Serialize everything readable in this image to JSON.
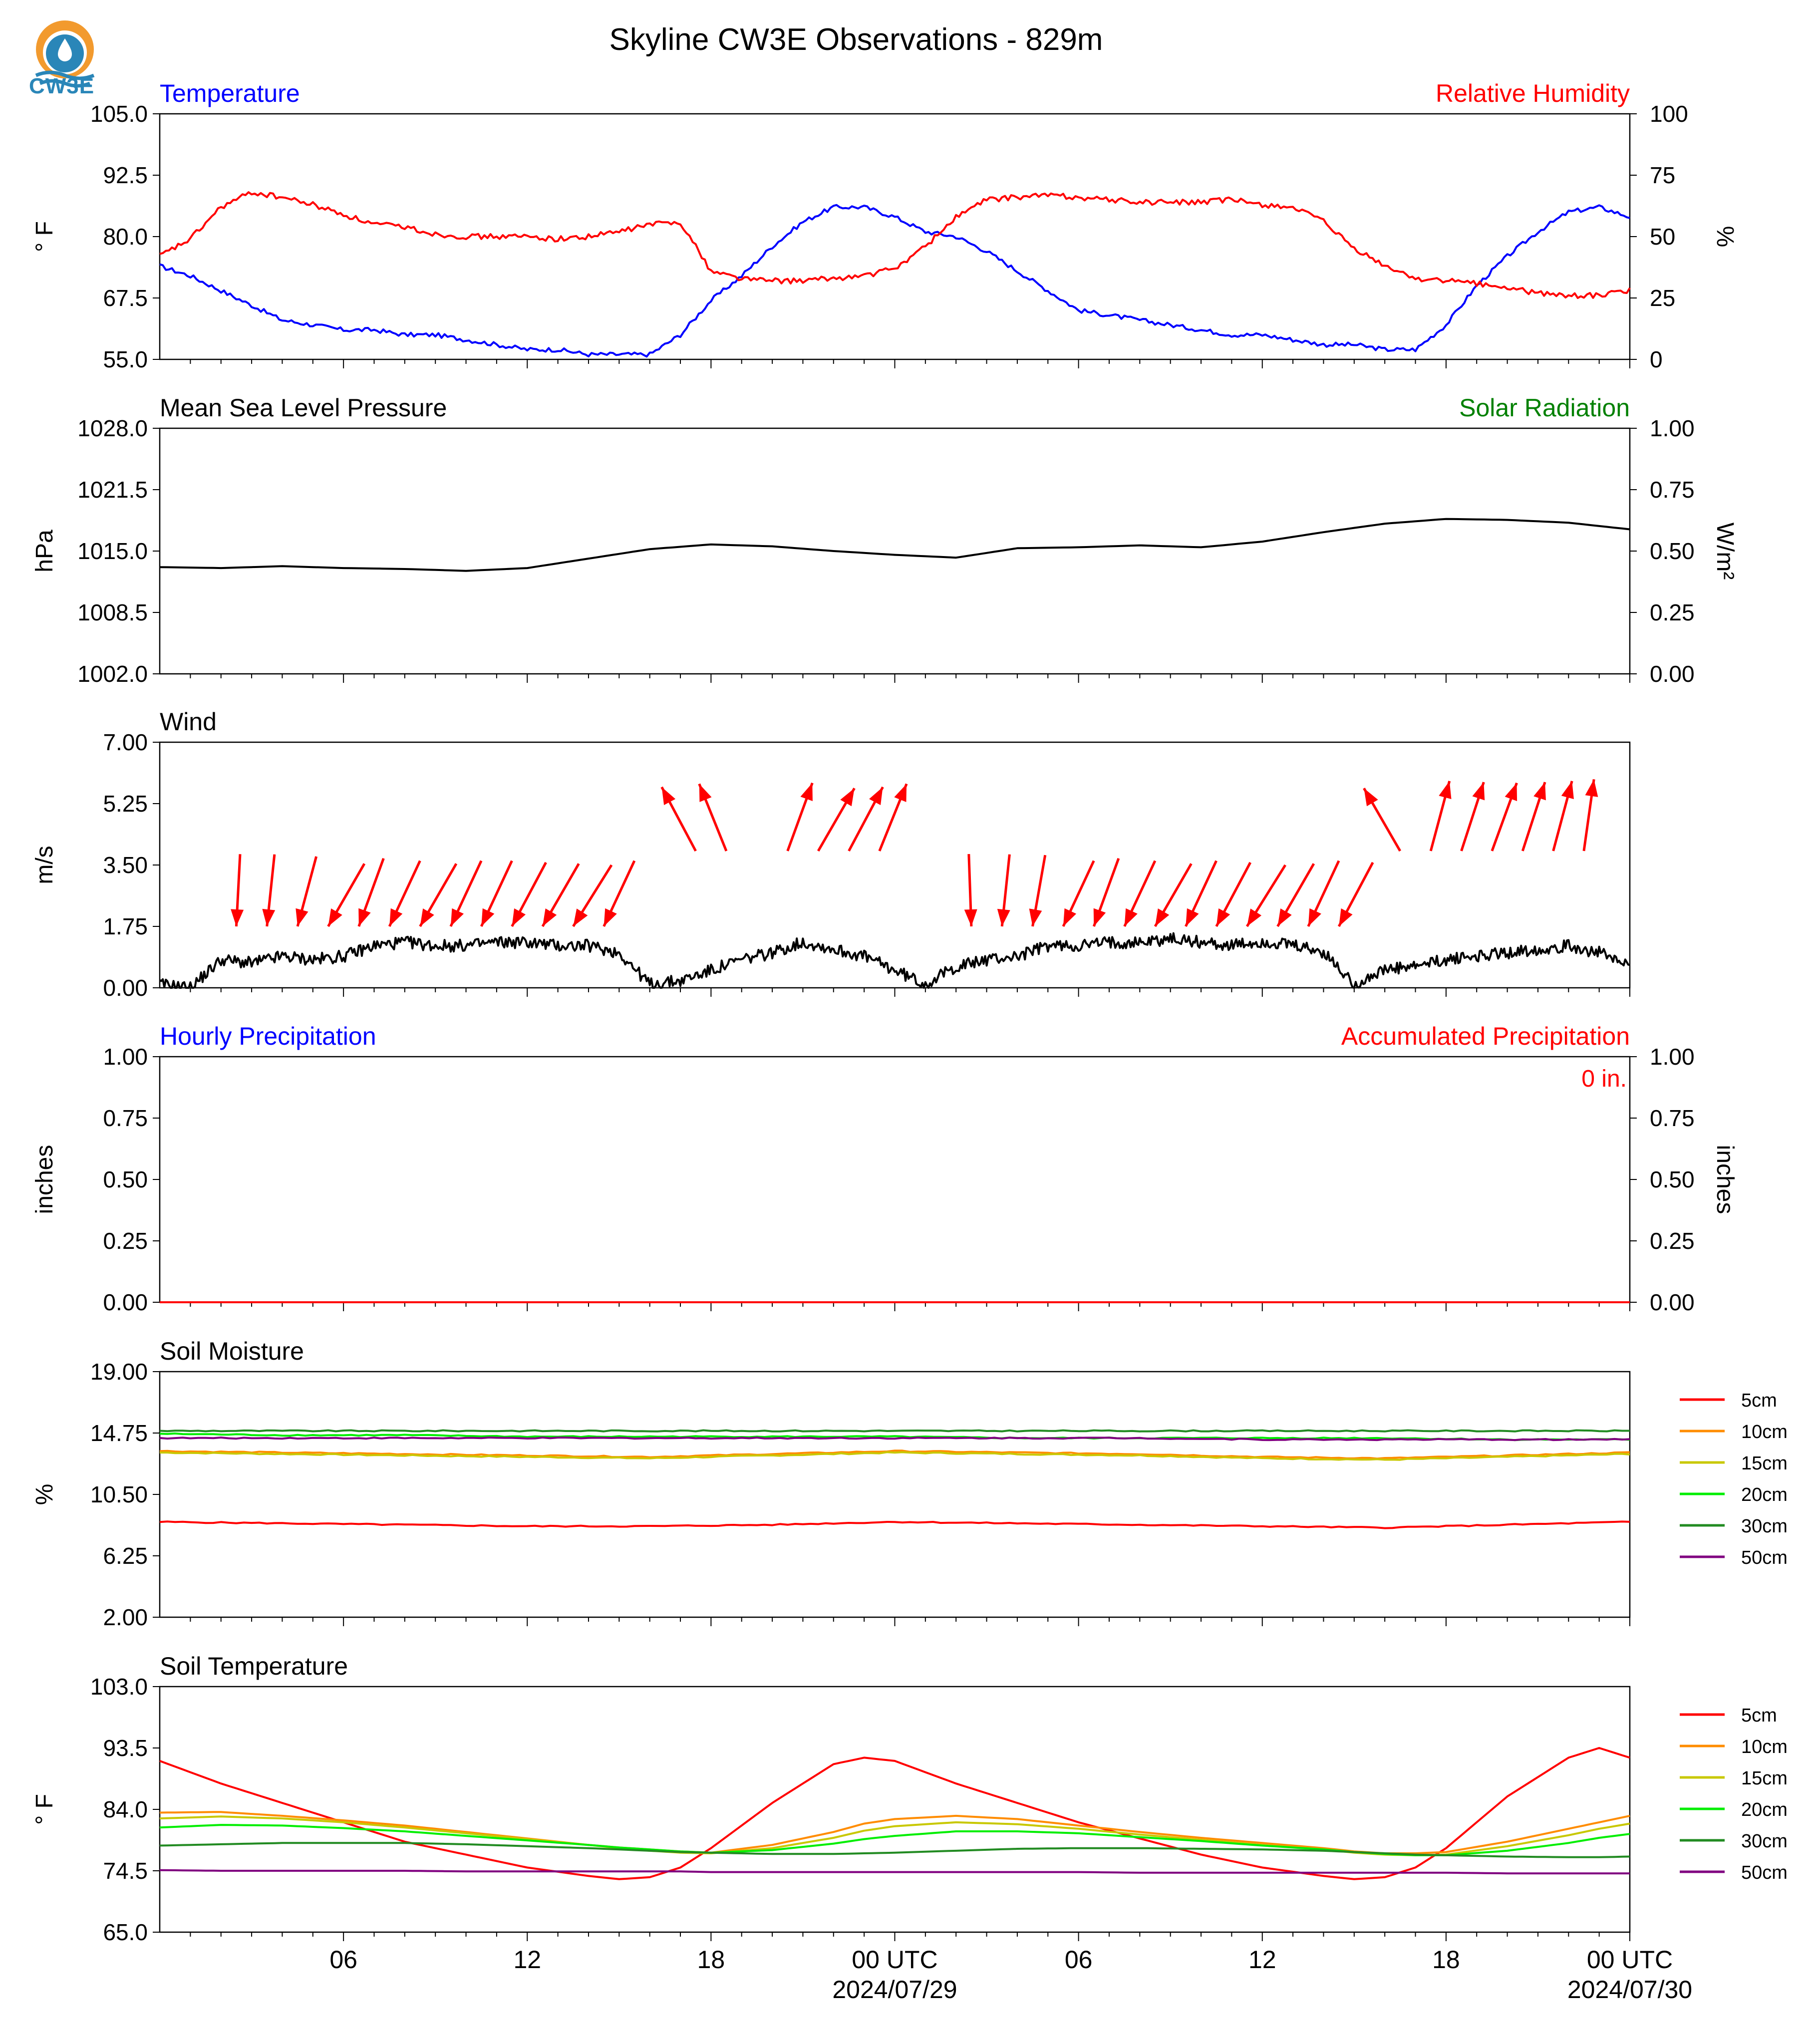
{
  "logo": {
    "text": "CW3E",
    "colors": {
      "sun": "#f29a2e",
      "drop": "#2a86b8"
    }
  },
  "title": "Skyline CW3E Observations - 829m",
  "x_axis": {
    "tick_labels": [
      "06",
      "12",
      "18",
      "00 UTC",
      "06",
      "12",
      "18",
      "00 UTC"
    ],
    "date_labels": [
      "2024/07/29",
      "2024/07/30"
    ]
  },
  "legend": {
    "entries": [
      "5cm",
      "10cm",
      "15cm",
      "20cm",
      "30cm",
      "50cm"
    ],
    "colors": [
      "#ff0000",
      "#ff8c00",
      "#c8c800",
      "#00ee00",
      "#228b22",
      "#800080"
    ]
  },
  "colors": {
    "temperature": "#0000ff",
    "humidity": "#ff0000",
    "pressure": "#000000",
    "solar": "#008000",
    "wind": "#000000",
    "arrows": "#ff0000"
  },
  "chart_data": [
    {
      "type": "line",
      "panel": "Temperature / Relative Humidity",
      "title_left": "Temperature",
      "title_right": "Relative Humidity",
      "ylabel_left": "° F",
      "ylabel_right": "%",
      "ylim_left": [
        55,
        105
      ],
      "ylim_right": [
        0,
        100
      ],
      "yticks_left": [
        "105.0",
        "92.5",
        "80.0",
        "67.5",
        "55.0"
      ],
      "yticks_right": [
        "100",
        "75",
        "50",
        "25",
        "0"
      ],
      "x_hours": [
        0,
        1,
        2,
        3,
        4,
        5,
        6,
        7,
        8,
        9,
        10,
        11,
        12,
        13,
        14,
        15,
        16,
        17,
        18,
        19,
        20,
        21,
        22,
        23,
        24,
        25,
        26,
        27,
        28,
        29,
        30,
        31,
        32,
        33,
        34,
        35,
        36,
        37,
        38,
        39,
        40,
        41,
        42,
        43,
        44,
        45,
        46,
        47,
        48
      ],
      "series": [
        {
          "name": "Temperature",
          "axis": "left",
          "color": "#0000ff",
          "values": [
            74,
            72,
            69,
            66,
            63,
            62,
            61,
            61,
            60,
            60,
            59,
            58,
            57,
            57,
            56,
            56,
            56,
            60,
            67,
            72,
            78,
            83,
            86,
            86,
            84,
            81,
            80,
            77,
            73,
            69,
            65,
            64,
            63,
            62,
            61,
            60,
            60,
            59,
            58,
            58,
            57,
            57,
            62,
            70,
            76,
            81,
            85,
            86,
            84
          ]
        },
        {
          "name": "Relative Humidity",
          "axis": "right",
          "color": "#ff0000",
          "values": [
            42,
            49,
            62,
            68,
            66,
            63,
            59,
            55,
            54,
            51,
            50,
            50,
            50,
            49,
            50,
            52,
            55,
            56,
            36,
            33,
            32,
            32,
            33,
            34,
            37,
            46,
            58,
            65,
            66,
            67,
            66,
            65,
            64,
            64,
            64,
            65,
            63,
            62,
            56,
            45,
            38,
            33,
            32,
            31,
            29,
            27,
            26,
            26,
            28
          ]
        }
      ]
    },
    {
      "type": "line",
      "panel": "Mean Sea Level Pressure / Solar Radiation",
      "title_left": "Mean Sea Level Pressure",
      "title_right": "Solar Radiation",
      "ylabel_left": "hPa",
      "ylabel_right": "W/m²",
      "ylim_left": [
        1002,
        1028
      ],
      "ylim_right": [
        0,
        1
      ],
      "yticks_left": [
        "1028.0",
        "1021.5",
        "1015.0",
        "1008.5",
        "1002.0"
      ],
      "yticks_right": [
        "1.00",
        "0.75",
        "0.50",
        "0.25",
        "0.00"
      ],
      "x_hours": [
        0,
        2,
        4,
        6,
        8,
        10,
        12,
        14,
        16,
        18,
        20,
        22,
        24,
        26,
        28,
        30,
        32,
        34,
        36,
        38,
        40,
        42,
        44,
        46,
        48
      ],
      "series": [
        {
          "name": "Mean Sea Level Pressure",
          "axis": "left",
          "color": "#000000",
          "values": [
            1013.3,
            1013.2,
            1013.4,
            1013.2,
            1013.1,
            1012.9,
            1013.2,
            1014.2,
            1015.2,
            1015.7,
            1015.5,
            1015.0,
            1014.6,
            1014.3,
            1015.3,
            1015.4,
            1015.6,
            1015.4,
            1016.0,
            1017.0,
            1017.9,
            1018.4,
            1018.3,
            1018.0,
            1017.3
          ]
        }
      ]
    },
    {
      "type": "line",
      "panel": "Wind",
      "title_left": "Wind",
      "ylabel_left": "m/s",
      "ylim_left": [
        0,
        7
      ],
      "yticks_left": [
        "7.00",
        "5.25",
        "3.50",
        "1.75",
        "0.00"
      ],
      "x_hours": [
        0,
        1,
        2,
        3,
        4,
        5,
        6,
        7,
        8,
        9,
        10,
        11,
        12,
        13,
        14,
        15,
        16,
        17,
        18,
        19,
        20,
        21,
        22,
        23,
        24,
        25,
        26,
        27,
        28,
        29,
        30,
        31,
        32,
        33,
        34,
        35,
        36,
        37,
        38,
        39,
        40,
        41,
        42,
        43,
        44,
        45,
        46,
        47,
        48
      ],
      "series": [
        {
          "name": "Wind speed",
          "color": "#000000",
          "values": [
            0.1,
            0,
            0.8,
            0.7,
            0.9,
            0.8,
            0.9,
            1.2,
            1.3,
            1.2,
            1.2,
            1.3,
            1.3,
            1.2,
            1.2,
            1.0,
            0.1,
            0.2,
            0.5,
            0.8,
            1.0,
            1.3,
            1.1,
            0.9,
            0.5,
            0.1,
            0.6,
            0.8,
            0.9,
            1.2,
            1.2,
            1.3,
            1.3,
            1.4,
            1.3,
            1.2,
            1.3,
            1.2,
            1.0,
            0.1,
            0.5,
            0.6,
            0.8,
            0.9,
            1.0,
            1.1,
            1.2,
            1.0,
            0.6
          ]
        }
      ],
      "wind_arrows": {
        "hours": [
          2,
          3,
          4,
          5,
          6,
          7,
          8,
          9,
          10,
          11,
          12,
          13,
          14,
          17,
          18,
          20,
          21,
          22,
          23,
          26,
          27,
          28,
          29,
          30,
          31,
          32,
          33,
          34,
          35,
          36,
          37,
          38,
          40,
          41,
          42,
          43,
          44,
          45,
          46
        ],
        "direction_to_deg": [
          183,
          186,
          195,
          210,
          200,
          205,
          210,
          205,
          205,
          208,
          210,
          212,
          205,
          332,
          338,
          20,
          30,
          28,
          22,
          178,
          186,
          190,
          205,
          200,
          205,
          210,
          205,
          208,
          212,
          210,
          205,
          208,
          330,
          15,
          18,
          20,
          18,
          15,
          8
        ]
      }
    },
    {
      "type": "line",
      "panel": "Hourly Precipitation / Accumulated Precipitation",
      "title_left": "Hourly Precipitation",
      "title_right": "Accumulated Precipitation",
      "ylabel_left": "inches",
      "ylabel_right": "inches",
      "ylim_left": [
        0,
        1
      ],
      "ylim_right": [
        0,
        1
      ],
      "yticks_left": [
        "1.00",
        "0.75",
        "0.50",
        "0.25",
        "0.00"
      ],
      "yticks_right": [
        "1.00",
        "0.75",
        "0.50",
        "0.25",
        "0.00"
      ],
      "annotation": "0 in.",
      "x_hours": [
        0,
        48
      ],
      "series": [
        {
          "name": "Accumulated Precipitation",
          "color": "#ff0000",
          "values": [
            0,
            0
          ]
        }
      ]
    },
    {
      "type": "line",
      "panel": "Soil Moisture",
      "title_left": "Soil Moisture",
      "ylabel_left": "%",
      "ylim_left": [
        2,
        19
      ],
      "yticks_left": [
        "19.00",
        "14.75",
        "10.50",
        "6.25",
        "2.00"
      ],
      "x_hours": [
        0,
        4,
        8,
        12,
        16,
        20,
        24,
        28,
        32,
        36,
        40,
        44,
        48
      ],
      "series": [
        {
          "name": "5cm",
          "color": "#ff0000",
          "values": [
            8.6,
            8.5,
            8.4,
            8.3,
            8.3,
            8.4,
            8.6,
            8.5,
            8.4,
            8.3,
            8.2,
            8.4,
            8.6
          ]
        },
        {
          "name": "10cm",
          "color": "#ff8c00",
          "values": [
            13.5,
            13.4,
            13.3,
            13.2,
            13.1,
            13.3,
            13.5,
            13.4,
            13.3,
            13.1,
            13.0,
            13.2,
            13.4
          ]
        },
        {
          "name": "15cm",
          "color": "#c8c800",
          "values": [
            13.4,
            13.3,
            13.2,
            13.1,
            13.0,
            13.2,
            13.4,
            13.3,
            13.2,
            13.0,
            12.9,
            13.1,
            13.3
          ]
        },
        {
          "name": "20cm",
          "color": "#00ee00",
          "values": [
            14.7,
            14.6,
            14.6,
            14.5,
            14.5,
            14.5,
            14.5,
            14.4,
            14.4,
            14.4,
            14.4,
            14.3,
            14.3
          ]
        },
        {
          "name": "30cm",
          "color": "#228b22",
          "values": [
            14.9,
            14.9,
            14.9,
            14.9,
            14.9,
            14.9,
            14.9,
            14.9,
            14.9,
            14.9,
            14.9,
            14.9,
            14.9
          ]
        },
        {
          "name": "50cm",
          "color": "#800080",
          "values": [
            14.4,
            14.4,
            14.4,
            14.4,
            14.4,
            14.4,
            14.4,
            14.4,
            14.4,
            14.3,
            14.3,
            14.3,
            14.3
          ]
        }
      ]
    },
    {
      "type": "line",
      "panel": "Soil Temperature",
      "title_left": "Soil Temperature",
      "ylabel_left": "° F",
      "ylim_left": [
        65,
        103
      ],
      "yticks_left": [
        "103.0",
        "93.5",
        "84.0",
        "74.5",
        "65.0"
      ],
      "x_hours": [
        0,
        2,
        4,
        6,
        8,
        10,
        12,
        14,
        15,
        16,
        17,
        18,
        20,
        22,
        23,
        24,
        26,
        28,
        30,
        32,
        34,
        36,
        38,
        39,
        40,
        41,
        42,
        44,
        46,
        47,
        48
      ],
      "series": [
        {
          "name": "5cm",
          "color": "#ff0000",
          "values": [
            91.5,
            88,
            85,
            82,
            79,
            77,
            75,
            73.7,
            73.2,
            73.5,
            75,
            78,
            85,
            91,
            92,
            91.5,
            88,
            85,
            82,
            79.5,
            77,
            75,
            73.7,
            73.2,
            73.5,
            75,
            78,
            86,
            92,
            93.5,
            92
          ]
        },
        {
          "name": "10cm",
          "color": "#ff8c00",
          "values": [
            83.5,
            83.6,
            83,
            82.3,
            81.5,
            80.5,
            79.5,
            78.5,
            78.1,
            77.8,
            77.5,
            77.3,
            78.5,
            80.5,
            81.8,
            82.5,
            83,
            82.5,
            81.5,
            80.5,
            79.6,
            78.8,
            78,
            77.5,
            77.2,
            77.2,
            77.4,
            79,
            81,
            82,
            83
          ]
        },
        {
          "name": "15cm",
          "color": "#c8c800",
          "values": [
            82.6,
            82.9,
            82.6,
            82,
            81.2,
            80.3,
            79.4,
            78.5,
            78,
            77.6,
            77.3,
            77.2,
            78,
            79.6,
            80.7,
            81.4,
            82,
            81.7,
            81,
            80.1,
            79.3,
            78.5,
            77.8,
            77.3,
            77,
            76.9,
            77,
            78.3,
            80,
            81,
            81.8
          ]
        },
        {
          "name": "20cm",
          "color": "#00ee00",
          "values": [
            81.2,
            81.6,
            81.5,
            81.1,
            80.6,
            79.9,
            79.2,
            78.5,
            78.1,
            77.8,
            77.5,
            77.3,
            77.7,
            78.7,
            79.4,
            79.9,
            80.6,
            80.6,
            80.3,
            79.7,
            79.1,
            78.4,
            77.8,
            77.4,
            77.1,
            76.9,
            76.9,
            77.6,
            78.8,
            79.6,
            80.2
          ]
        },
        {
          "name": "30cm",
          "color": "#228b22",
          "values": [
            78.4,
            78.6,
            78.8,
            78.8,
            78.8,
            78.6,
            78.3,
            78,
            77.8,
            77.6,
            77.4,
            77.3,
            77.1,
            77.1,
            77.2,
            77.3,
            77.6,
            77.9,
            78,
            78,
            77.9,
            77.8,
            77.6,
            77.4,
            77.2,
            77,
            76.9,
            76.7,
            76.6,
            76.6,
            76.7
          ]
        },
        {
          "name": "50cm",
          "color": "#800080",
          "values": [
            74.6,
            74.5,
            74.5,
            74.5,
            74.5,
            74.4,
            74.4,
            74.4,
            74.4,
            74.4,
            74.4,
            74.3,
            74.3,
            74.3,
            74.3,
            74.3,
            74.3,
            74.3,
            74.3,
            74.2,
            74.2,
            74.2,
            74.2,
            74.2,
            74.2,
            74.2,
            74.2,
            74.1,
            74.1,
            74.1,
            74.1
          ]
        }
      ]
    }
  ]
}
